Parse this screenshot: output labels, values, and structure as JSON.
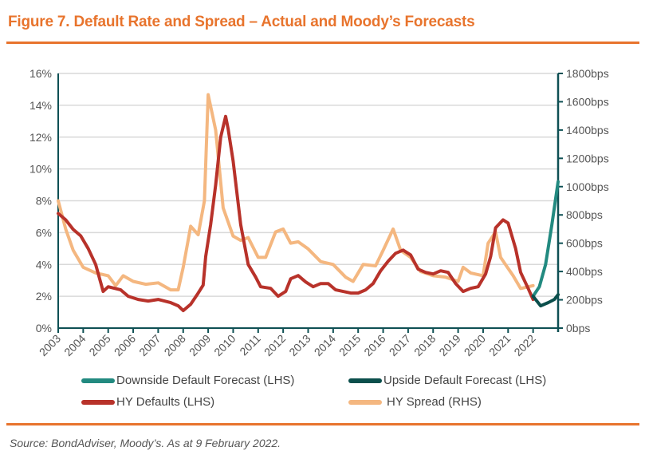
{
  "title": "Figure 7. Default Rate and Spread – Actual and Moody’s Forecasts",
  "source": "Source: BondAdviser, Moody’s. As at 9 February 2022.",
  "chart_data": {
    "type": "line",
    "title": "Figure 7. Default Rate and Spread – Actual and Moody’s Forecasts",
    "x_ticks": [
      "2003",
      "2004",
      "2005",
      "2006",
      "2007",
      "2008",
      "2009",
      "2010",
      "2011",
      "2012",
      "2013",
      "2014",
      "2015",
      "2016",
      "2017",
      "2018",
      "2019",
      "2020",
      "2021",
      "2022"
    ],
    "xlim": [
      2003,
      2023
    ],
    "y_left": {
      "ylim": [
        0,
        16
      ],
      "ticks": [
        "0%",
        "2%",
        "4%",
        "6%",
        "8%",
        "10%",
        "12%",
        "14%",
        "16%"
      ]
    },
    "y_right": {
      "ylim": [
        0,
        1800
      ],
      "ticks": [
        "0bps",
        "200bps",
        "400bps",
        "600bps",
        "800bps",
        "1000bps",
        "1200bps",
        "1400bps",
        "1600bps",
        "1800bps"
      ]
    },
    "grid": true,
    "legend_position": "bottom",
    "series": [
      {
        "name": "Downside Default Forecast (LHS)",
        "axis": "left",
        "color": "#228a80",
        "x": [
          2022.0,
          2022.25,
          2022.5,
          2022.75,
          2023.0
        ],
        "y": [
          2.0,
          2.6,
          4.0,
          6.5,
          9.2
        ]
      },
      {
        "name": "Upside Default Forecast (LHS)",
        "axis": "left",
        "color": "#0b4f4c",
        "x": [
          2022.0,
          2022.3,
          2022.6,
          2022.85,
          2023.0
        ],
        "y": [
          2.0,
          1.4,
          1.6,
          1.8,
          2.1
        ]
      },
      {
        "name": "HY Defaults (LHS)",
        "axis": "left",
        "color": "#b8322a",
        "x": [
          2003,
          2003.3,
          2003.6,
          2003.9,
          2004.2,
          2004.5,
          2004.8,
          2005,
          2005.5,
          2005.8,
          2006.2,
          2006.6,
          2007,
          2007.5,
          2007.8,
          2008,
          2008.3,
          2008.6,
          2008.8,
          2008.9,
          2009.1,
          2009.3,
          2009.5,
          2009.7,
          2009.8,
          2010,
          2010.3,
          2010.6,
          2010.9,
          2011.1,
          2011.5,
          2011.8,
          2012.1,
          2012.3,
          2012.6,
          2012.9,
          2013.2,
          2013.5,
          2013.8,
          2014.1,
          2014.4,
          2014.7,
          2015,
          2015.3,
          2015.6,
          2015.9,
          2016.2,
          2016.5,
          2016.8,
          2017.1,
          2017.4,
          2017.7,
          2018,
          2018.3,
          2018.6,
          2018.9,
          2019.2,
          2019.5,
          2019.8,
          2020.1,
          2020.3,
          2020.5,
          2020.8,
          2021,
          2021.3,
          2021.5,
          2021.8,
          2022
        ],
        "y": [
          7.2,
          6.8,
          6.2,
          5.8,
          5.0,
          4.0,
          2.3,
          2.6,
          2.4,
          2.0,
          1.8,
          1.7,
          1.8,
          1.6,
          1.4,
          1.1,
          1.5,
          2.2,
          2.7,
          4.5,
          6.5,
          9.0,
          12.0,
          13.3,
          12.5,
          10.5,
          6.5,
          4.0,
          3.2,
          2.6,
          2.5,
          2.0,
          2.3,
          3.1,
          3.3,
          2.9,
          2.6,
          2.8,
          2.8,
          2.4,
          2.3,
          2.2,
          2.2,
          2.4,
          2.8,
          3.6,
          4.2,
          4.7,
          4.9,
          4.6,
          3.7,
          3.5,
          3.4,
          3.6,
          3.5,
          2.8,
          2.3,
          2.5,
          2.6,
          3.4,
          4.5,
          6.3,
          6.8,
          6.6,
          5.0,
          3.5,
          2.5,
          1.8
        ]
      },
      {
        "name": "HY Spread (RHS)",
        "axis": "right",
        "color": "#f4b780",
        "x": [
          2003,
          2003.3,
          2003.6,
          2004,
          2004.5,
          2005,
          2005.3,
          2005.6,
          2006,
          2006.5,
          2007,
          2007.5,
          2007.8,
          2008,
          2008.3,
          2008.6,
          2008.85,
          2009,
          2009.3,
          2009.6,
          2010,
          2010.3,
          2010.6,
          2011,
          2011.3,
          2011.7,
          2012,
          2012.3,
          2012.6,
          2013,
          2013.5,
          2014,
          2014.5,
          2014.8,
          2015.2,
          2015.7,
          2016,
          2016.4,
          2016.7,
          2017.1,
          2017.5,
          2018,
          2018.5,
          2019,
          2019.2,
          2019.5,
          2020,
          2020.2,
          2020.5,
          2020.7,
          2021.2,
          2021.5,
          2022
        ],
        "y": [
          900,
          700,
          550,
          430,
          390,
          370,
          300,
          370,
          330,
          310,
          320,
          270,
          270,
          430,
          720,
          660,
          900,
          1650,
          1400,
          850,
          650,
          620,
          640,
          500,
          500,
          680,
          700,
          600,
          610,
          560,
          470,
          450,
          360,
          330,
          450,
          440,
          550,
          700,
          550,
          500,
          400,
          370,
          360,
          330,
          430,
          390,
          370,
          600,
          680,
          500,
          370,
          280,
          300
        ]
      }
    ]
  }
}
